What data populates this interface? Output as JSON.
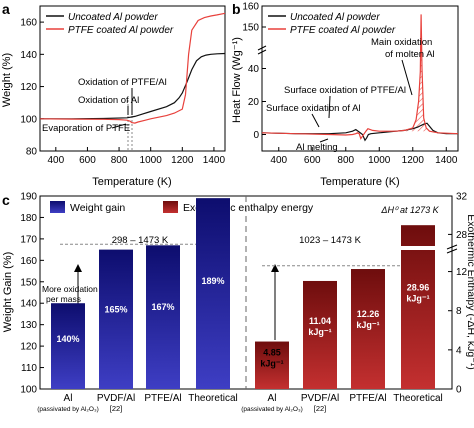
{
  "chart_data": [
    {
      "panel": "a",
      "type": "line",
      "xlabel": "Temperature (K)",
      "ylabel": "Weight (%)",
      "xlim": [
        300,
        1470
      ],
      "ylim": [
        80,
        170
      ],
      "xticks": [
        400,
        600,
        800,
        1000,
        1200,
        1400
      ],
      "yticks": [
        80,
        100,
        120,
        140,
        160
      ],
      "legend_position": "top-left",
      "annotations": [
        "Oxidation of PTFE/Al",
        "Oxidation of Al",
        "Evaporation of PTFE"
      ],
      "series": [
        {
          "name": "Uncoated Al powder",
          "color": "#111111",
          "x": [
            300,
            500,
            700,
            850,
            900,
            950,
            1000,
            1100,
            1150,
            1180,
            1200,
            1230,
            1260,
            1290,
            1320,
            1350,
            1380,
            1420,
            1470
          ],
          "y": [
            100,
            100,
            100.2,
            100.6,
            101.5,
            103,
            104.5,
            107.5,
            110,
            113,
            116,
            123,
            130.5,
            136,
            138.5,
            139.5,
            140,
            140.3,
            140.5
          ]
        },
        {
          "name": "PTFE coated Al powder",
          "color": "#e8413c",
          "x": [
            300,
            500,
            700,
            800,
            850,
            870,
            880,
            900,
            920,
            960,
            1000,
            1100,
            1150,
            1200,
            1220,
            1240,
            1260,
            1300,
            1340,
            1380,
            1420,
            1470
          ],
          "y": [
            100,
            99.8,
            99.7,
            99.5,
            99.1,
            98.5,
            97.6,
            97.3,
            98,
            99,
            100,
            102,
            103.5,
            106,
            115,
            140,
            155,
            161,
            162.8,
            163.8,
            164.5,
            165.5
          ]
        }
      ]
    },
    {
      "panel": "b",
      "type": "line",
      "xlabel": "Temperature (K)",
      "ylabel": "Heat Flow (Wg⁻¹)",
      "xlim": [
        300,
        1470
      ],
      "ylim_lower": [
        -10,
        50
      ],
      "ylim_upper": [
        140,
        160
      ],
      "axis_break": true,
      "xticks": [
        400,
        600,
        800,
        1000,
        1200,
        1400
      ],
      "yticks": [
        0,
        20,
        40,
        150,
        160
      ],
      "legend_position": "top-left",
      "annotations": [
        "Main oxidation of molten Al",
        "Surface oxidation of PTFE/Al",
        "Surface oxidation of Al",
        "Al melting"
      ],
      "series": [
        {
          "name": "Uncoated Al powder",
          "color": "#111111",
          "x": [
            300,
            500,
            700,
            800,
            840,
            860,
            880,
            900,
            915,
            925,
            935,
            950,
            1000,
            1100,
            1150,
            1200,
            1230,
            1250,
            1270,
            1285,
            1300,
            1320,
            1350,
            1400,
            1470
          ],
          "y": [
            1,
            0.5,
            0.5,
            1,
            2,
            3,
            1.5,
            0,
            -3.5,
            -2,
            0,
            0.5,
            1,
            2,
            2.5,
            3.5,
            4.5,
            5.5,
            6.5,
            6.8,
            5,
            2.5,
            1,
            0.5,
            0.5
          ]
        },
        {
          "name": "PTFE coated Al powder",
          "color": "#e8413c",
          "x": [
            300,
            500,
            700,
            800,
            840,
            860,
            870,
            880,
            890,
            900,
            910,
            920,
            932,
            960,
            1000,
            1100,
            1150,
            1200,
            1220,
            1235,
            1245,
            1250,
            1255,
            1265,
            1280,
            1300,
            1350,
            1470
          ],
          "y": [
            1,
            0.5,
            0,
            -0.3,
            0,
            0.5,
            1,
            0.5,
            -2.5,
            -1,
            0.5,
            2,
            3.5,
            2.5,
            2,
            2,
            2.5,
            4,
            9,
            20,
            38,
            156,
            40,
            10,
            4,
            2,
            1,
            0.5
          ]
        }
      ]
    },
    {
      "panel": "c",
      "type": "bar",
      "categories_left": [
        "Al",
        "PVDF/Al",
        "PTFE/Al",
        "Theoretical"
      ],
      "categories_right": [
        "Al",
        "PVDF/Al",
        "PTFE/Al",
        "Theoretical"
      ],
      "category_notes": [
        "(passivated by Al₂O₃)",
        "[22]"
      ],
      "ylabel_left": "Weight Gain (%)",
      "ylabel_right": "Exothermic Enthalpy (-ΔH, kJg⁻¹)",
      "ylim_left": [
        100,
        190
      ],
      "yticks_left": [
        100,
        110,
        120,
        130,
        140,
        150,
        160,
        170,
        180,
        190
      ],
      "ylim_right_lower": [
        0,
        14
      ],
      "yticks_right_lower": [
        0,
        4,
        8,
        12
      ],
      "ylim_right_upper": [
        27,
        32
      ],
      "yticks_right_upper": [
        28,
        32
      ],
      "legend": [
        "Weight gain",
        "Exothermic enthalpy energy"
      ],
      "legend_position": "top",
      "range_left": "298 – 1473 K",
      "range_right": "1023 – 1473 K",
      "annotations": [
        "More oxidation per mass",
        "ΔH⁰ at 1273 K"
      ],
      "weight_gain": {
        "color": "#1a1a8c",
        "values": [
          140,
          165,
          167,
          189
        ],
        "labels": [
          "140%",
          "165%",
          "167%",
          "189%"
        ]
      },
      "enthalpy": {
        "color": "#8b1a1a",
        "values": [
          4.85,
          11.04,
          12.26,
          28.96
        ],
        "labels": [
          "4.85 kJg⁻¹",
          "11.04 kJg⁻¹",
          "12.26 kJg⁻¹",
          "28.96 kJg⁻¹"
        ]
      }
    }
  ]
}
